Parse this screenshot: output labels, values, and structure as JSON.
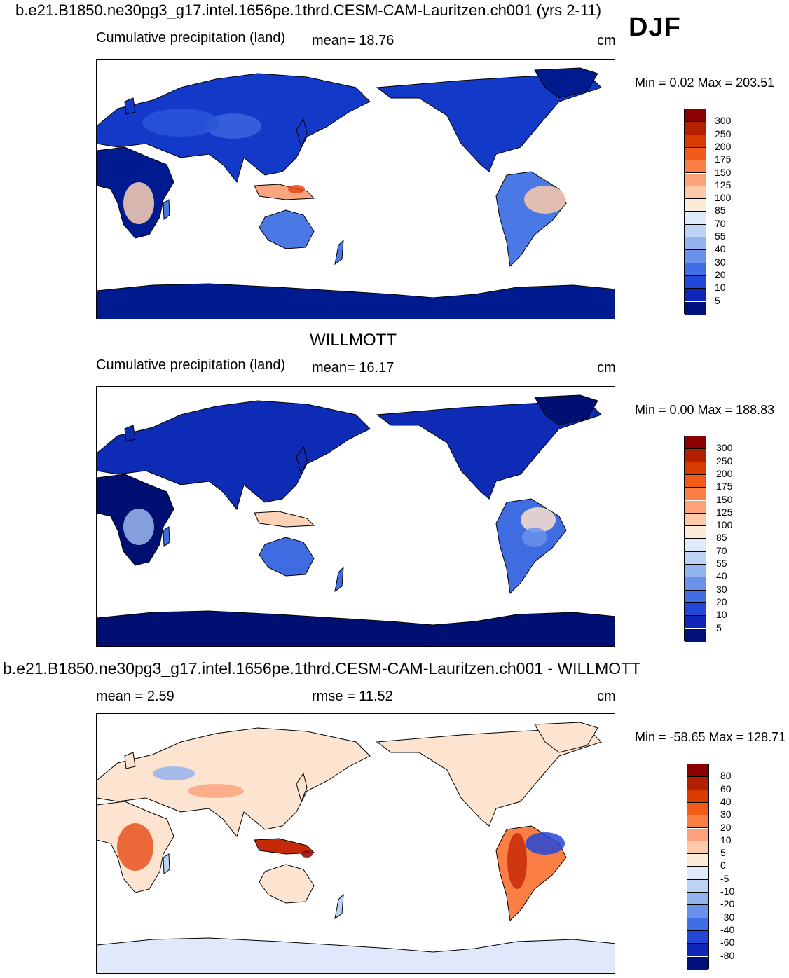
{
  "header": {
    "case_title": "b.e21.B1850.ne30pg3_g17.intel.1656pe.1thrd.CESM-CAM-Lauritzen.ch001 (yrs 2-11)",
    "season": "DJF"
  },
  "panels": [
    {
      "left_label": "Cumulative precipitation (land)",
      "center_label": "mean=  18.76",
      "units": "cm",
      "minmax": "Min =    0.02 Max = 203.51",
      "kind": "model"
    },
    {
      "section_title": "WILLMOTT",
      "left_label": "Cumulative precipitation (land)",
      "center_label": "mean=  16.17",
      "units": "cm",
      "minmax": "Min =    0.00 Max = 188.83",
      "kind": "obs"
    },
    {
      "section_title": "b.e21.B1850.ne30pg3_g17.intel.1656pe.1thrd.CESM-CAM-Lauritzen.ch001 - WILLMOTT",
      "left_label": "mean =    2.59",
      "center_label": "rmse =   11.52",
      "units": "cm",
      "minmax": "Min = -58.65 Max = 128.71",
      "kind": "diff"
    }
  ],
  "colorbars": {
    "precip": {
      "labels": [
        "300",
        "250",
        "200",
        "175",
        "150",
        "125",
        "100",
        "85",
        "70",
        "55",
        "40",
        "30",
        "20",
        "10",
        "5"
      ],
      "colors": [
        "#8b0000",
        "#b22000",
        "#d93a00",
        "#f25a18",
        "#fb7e45",
        "#fca27a",
        "#fdc9a8",
        "#fdebd9",
        "#dfeafb",
        "#bcd3f5",
        "#93b3ef",
        "#6a92ea",
        "#416ee6",
        "#2347d6",
        "#0e25b8",
        "#00107a"
      ]
    },
    "diff": {
      "labels": [
        "80",
        "60",
        "40",
        "30",
        "20",
        "10",
        "5",
        "0",
        "-5",
        "-10",
        "-20",
        "-30",
        "-40",
        "-60",
        "-80"
      ],
      "colors": [
        "#8b0000",
        "#b22000",
        "#d93a00",
        "#f25a18",
        "#fb7e45",
        "#fca27a",
        "#fdc9a8",
        "#fdebd9",
        "#dfeafb",
        "#bcd3f5",
        "#93b3ef",
        "#6a92ea",
        "#416ee6",
        "#2347d6",
        "#0e25b8",
        "#00107a"
      ]
    }
  }
}
